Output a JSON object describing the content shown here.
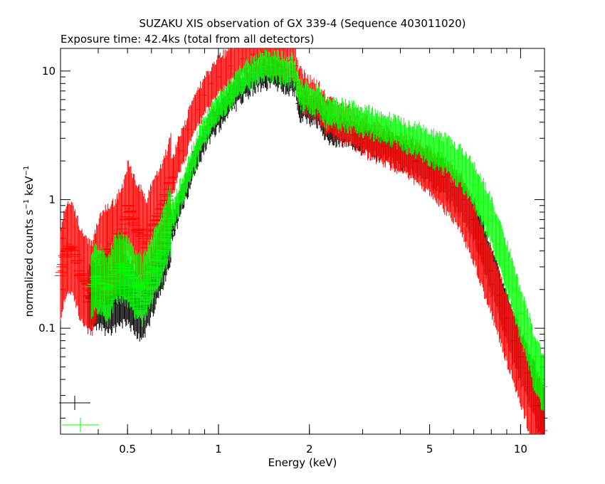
{
  "title": "SUZAKU XIS observation of GX 339-4 (Sequence 403011020)",
  "subtitle": "Exposure time: 42.4ks (total from all detectors)",
  "colors": {
    "black": "#000000",
    "red": "#ff0000",
    "green": "#00ff00"
  },
  "chart_data": {
    "type": "scatter",
    "title": "SUZAKU XIS observation of GX 339-4 (Sequence 403011020)",
    "subtitle": "Exposure time: 42.4ks (total from all detectors)",
    "xlabel": "Energy (keV)",
    "ylabel_main": "normalized counts s",
    "ylabel_sup1": "−1",
    "ylabel_mid": " keV",
    "ylabel_sup2": "−1",
    "xscale": "log",
    "yscale": "log",
    "xlim": [
      0.3,
      12.0
    ],
    "ylim": [
      0.015,
      15.0
    ],
    "x_ticks": [
      {
        "v": 0.5,
        "label": "0.5"
      },
      {
        "v": 1,
        "label": "1"
      },
      {
        "v": 2,
        "label": "2"
      },
      {
        "v": 5,
        "label": "5"
      },
      {
        "v": 10,
        "label": "10"
      }
    ],
    "y_ticks": [
      {
        "v": 0.1,
        "label": "0.1"
      },
      {
        "v": 1,
        "label": "1"
      },
      {
        "v": 10,
        "label": "10"
      }
    ],
    "grid": false,
    "series": [
      {
        "color": "black",
        "x": [
          0.37,
          0.4,
          0.43,
          0.46,
          0.5,
          0.53,
          0.56,
          0.58,
          0.6,
          0.63,
          0.66,
          0.7,
          0.75,
          0.8,
          0.85,
          0.9,
          0.95,
          1.0,
          1.1,
          1.2,
          1.3,
          1.4,
          1.5,
          1.6,
          1.7,
          1.75,
          1.8,
          1.84,
          1.9,
          2.0,
          2.1,
          2.2,
          2.3,
          2.4,
          2.6,
          2.8,
          3.0,
          3.5,
          4.0,
          4.5,
          5.0,
          5.5,
          6.0,
          6.5,
          7.0,
          7.5,
          8.0,
          8.5,
          9.0,
          9.5,
          10.0,
          10.5,
          11.0,
          11.5,
          12.0
        ],
        "y": [
          0.17,
          0.19,
          0.16,
          0.18,
          0.2,
          0.16,
          0.14,
          0.17,
          0.22,
          0.3,
          0.4,
          0.62,
          0.95,
          1.5,
          2.2,
          3.0,
          3.8,
          4.5,
          6.0,
          7.5,
          8.7,
          9.5,
          9.8,
          9.2,
          8.5,
          8.8,
          8.2,
          5.6,
          5.3,
          5.1,
          4.9,
          4.4,
          3.4,
          3.5,
          3.4,
          3.2,
          3.0,
          2.6,
          2.3,
          2.0,
          1.75,
          1.5,
          1.25,
          1.0,
          0.7,
          0.45,
          0.28,
          0.18,
          0.12,
          0.08,
          0.06,
          0.045,
          0.035,
          0.025,
          0.02
        ],
        "err_x": 0.013,
        "err_y": 0.1
      },
      {
        "color": "red",
        "x": [
          0.3,
          0.32,
          0.34,
          0.36,
          0.38,
          0.4,
          0.42,
          0.45,
          0.48,
          0.5,
          0.52,
          0.55,
          0.58,
          0.6,
          0.63,
          0.66,
          0.7,
          0.75,
          0.8,
          0.85,
          0.9,
          0.95,
          1.0,
          1.1,
          1.2,
          1.3,
          1.4,
          1.5,
          1.6,
          1.7,
          1.75,
          1.8,
          1.84,
          1.9,
          2.0,
          2.1,
          2.2,
          2.3,
          2.4,
          2.6,
          2.8,
          3.0,
          3.5,
          4.0,
          4.5,
          5.0,
          5.5,
          6.0,
          6.5,
          7.0,
          7.5,
          8.0,
          8.5,
          9.0,
          9.5,
          10.0,
          10.5,
          11.0,
          11.5,
          12.0
        ],
        "y": [
          0.28,
          0.45,
          0.32,
          0.22,
          0.2,
          0.3,
          0.38,
          0.42,
          0.55,
          0.85,
          0.7,
          0.55,
          0.45,
          0.58,
          0.7,
          0.9,
          1.5,
          2.4,
          3.5,
          5.0,
          6.5,
          8.0,
          9.0,
          11.0,
          12.5,
          13.5,
          14.0,
          13.0,
          12.5,
          12.0,
          12.2,
          11.0,
          7.8,
          7.0,
          6.3,
          5.8,
          5.3,
          4.3,
          4.2,
          3.9,
          3.6,
          3.2,
          2.7,
          2.3,
          1.95,
          1.65,
          1.35,
          1.1,
          0.82,
          0.55,
          0.35,
          0.22,
          0.15,
          0.1,
          0.07,
          0.05,
          0.035,
          0.025,
          0.02,
          0.016
        ],
        "err_x": 0.015,
        "err_y": 0.14
      },
      {
        "color": "green",
        "x": [
          0.38,
          0.4,
          0.43,
          0.46,
          0.5,
          0.53,
          0.56,
          0.58,
          0.6,
          0.63,
          0.66,
          0.7,
          0.75,
          0.8,
          0.85,
          0.9,
          0.95,
          1.0,
          1.1,
          1.2,
          1.3,
          1.4,
          1.5,
          1.6,
          1.7,
          1.75,
          1.8,
          1.84,
          1.9,
          2.0,
          2.1,
          2.2,
          2.3,
          2.4,
          2.6,
          2.8,
          3.0,
          3.5,
          4.0,
          4.5,
          5.0,
          5.5,
          6.0,
          6.5,
          7.0,
          7.5,
          8.0,
          8.5,
          9.0,
          9.5,
          10.0,
          10.5,
          11.0,
          11.5,
          12.0
        ],
        "y": [
          0.22,
          0.25,
          0.2,
          0.3,
          0.28,
          0.22,
          0.2,
          0.24,
          0.28,
          0.35,
          0.48,
          0.72,
          1.1,
          1.7,
          2.5,
          3.4,
          4.3,
          5.2,
          6.8,
          8.5,
          9.8,
          10.8,
          11.2,
          10.5,
          9.8,
          10.2,
          9.5,
          6.8,
          6.4,
          6.2,
          6.0,
          5.5,
          4.5,
          4.6,
          4.5,
          4.3,
          4.1,
          3.7,
          3.3,
          2.9,
          2.6,
          2.3,
          2.0,
          1.65,
          1.3,
          0.95,
          0.68,
          0.45,
          0.3,
          0.2,
          0.13,
          0.09,
          0.06,
          0.045,
          0.035
        ],
        "err_x": 0.013,
        "err_y": 0.1
      }
    ],
    "legend_markers": [
      {
        "color": "black"
      },
      {
        "color": "green"
      }
    ]
  }
}
